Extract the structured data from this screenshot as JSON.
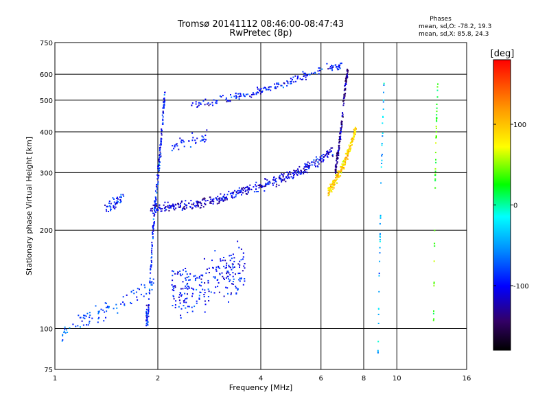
{
  "chart_data": {
    "type": "scatter",
    "title": "Tromsø 20141112 08:46:00-08:47:43",
    "subtitle": "RwPretec (8p)",
    "xlabel": "Frequency [MHz]",
    "ylabel": "Stationary phase Virtual Height [km]",
    "x_scale": "log",
    "y_scale": "log",
    "xlim": [
      1,
      16
    ],
    "ylim": [
      75,
      750
    ],
    "x_ticks": [
      1,
      2,
      4,
      6,
      8,
      10,
      16
    ],
    "y_ticks": [
      75,
      100,
      200,
      300,
      400,
      500,
      600,
      750
    ],
    "grid": true,
    "stats": {
      "header": "Phases",
      "line_o": "mean, sd,O: -78.2, 19.3",
      "line_x": "mean, sd,X:  85.8, 24.3"
    },
    "colorbar": {
      "label": "[deg]",
      "range": [
        -180,
        180
      ],
      "ticks": [
        100,
        0,
        -100
      ]
    },
    "traces": [
      {
        "x_range": [
          1.85,
          2.1
        ],
        "height": [
          110,
          105,
          125,
          150,
          180,
          210,
          240,
          260,
          290,
          320,
          360,
          420,
          480,
          520
        ],
        "phase": -95,
        "spread": 0.05,
        "n": 220
      },
      {
        "x_range": [
          1.9,
          6.5
        ],
        "height": [
          232,
          235,
          240,
          250,
          262,
          275,
          290,
          315,
          350
        ],
        "phase": -110,
        "spread": 0.025,
        "n": 420
      },
      {
        "x_range": [
          6.3,
          7.6
        ],
        "height": [
          260,
          275,
          290,
          310,
          335,
          370,
          410
        ],
        "phase": 95,
        "spread": 0.025,
        "n": 200
      },
      {
        "x_range": [
          6.6,
          7.2
        ],
        "height": [
          300,
          330,
          360,
          400,
          450,
          520,
          580,
          620
        ],
        "phase": -130,
        "spread": 0.03,
        "n": 150
      },
      {
        "x_range": [
          2.5,
          6.9
        ],
        "height": [
          480,
          490,
          505,
          520,
          540,
          560,
          590,
          620,
          640
        ],
        "phase": -95,
        "spread": 0.02,
        "n": 180
      },
      {
        "x_range": [
          2.2,
          3.6
        ],
        "height": [
          130,
          132,
          128,
          135,
          140,
          145,
          150,
          155
        ],
        "phase": -95,
        "spread": 0.12,
        "n": 240
      },
      {
        "x_range": [
          1.05,
          1.95
        ],
        "height": [
          97,
          102,
          106,
          110,
          115,
          120,
          125,
          130,
          140
        ],
        "phase": -75,
        "spread": 0.04,
        "n": 90
      },
      {
        "x_range": [
          1.4,
          1.6
        ],
        "height": [
          228,
          235,
          240,
          245,
          250,
          255
        ],
        "phase": -90,
        "spread": 0.03,
        "n": 45
      },
      {
        "x_range": [
          2.2,
          2.8
        ],
        "height": [
          360,
          365,
          370,
          375,
          380,
          390
        ],
        "phase": -95,
        "spread": 0.03,
        "n": 40
      },
      {
        "x_range": [
          8.8,
          9.2
        ],
        "height": [
          80,
          100,
          130,
          160,
          190,
          230,
          280,
          330,
          380,
          430,
          480,
          550,
          600
        ],
        "phase": -40,
        "spread": 0.06,
        "n": 45
      },
      {
        "x_range": [
          12.8,
          13.2
        ],
        "height": [
          95,
          130,
          180,
          230,
          300,
          350,
          400,
          450,
          500,
          560,
          620
        ],
        "phase": 30,
        "spread": 0.06,
        "n": 45
      }
    ]
  }
}
